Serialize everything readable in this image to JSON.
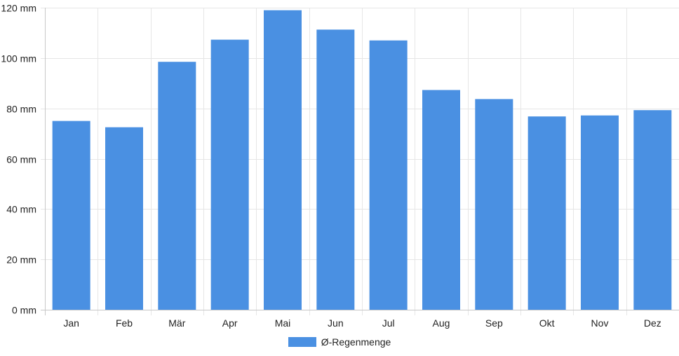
{
  "chart_data": {
    "type": "bar",
    "categories": [
      "Jan",
      "Feb",
      "Mär",
      "Apr",
      "Mai",
      "Jun",
      "Jul",
      "Aug",
      "Sep",
      "Okt",
      "Nov",
      "Dez"
    ],
    "series": [
      {
        "name": "Ø-Regenmenge",
        "values": [
          75,
          72.5,
          98.5,
          107.3,
          119,
          111.3,
          107,
          87.3,
          83.7,
          76.8,
          77.2,
          79.3
        ]
      }
    ],
    "title": "",
    "xlabel": "",
    "ylabel": "",
    "ylim": [
      0,
      120
    ],
    "y_ticks": [
      "0 mm",
      "20 mm",
      "40 mm",
      "60 mm",
      "80 mm",
      "100 mm",
      "120 mm"
    ],
    "y_tick_values": [
      0,
      20,
      40,
      60,
      80,
      100,
      120
    ],
    "grid": true,
    "legend_position": "bottom",
    "colors": {
      "bar": "#4a90e2",
      "grid": "#e6e6e6",
      "axis": "#c8c8c8"
    }
  }
}
